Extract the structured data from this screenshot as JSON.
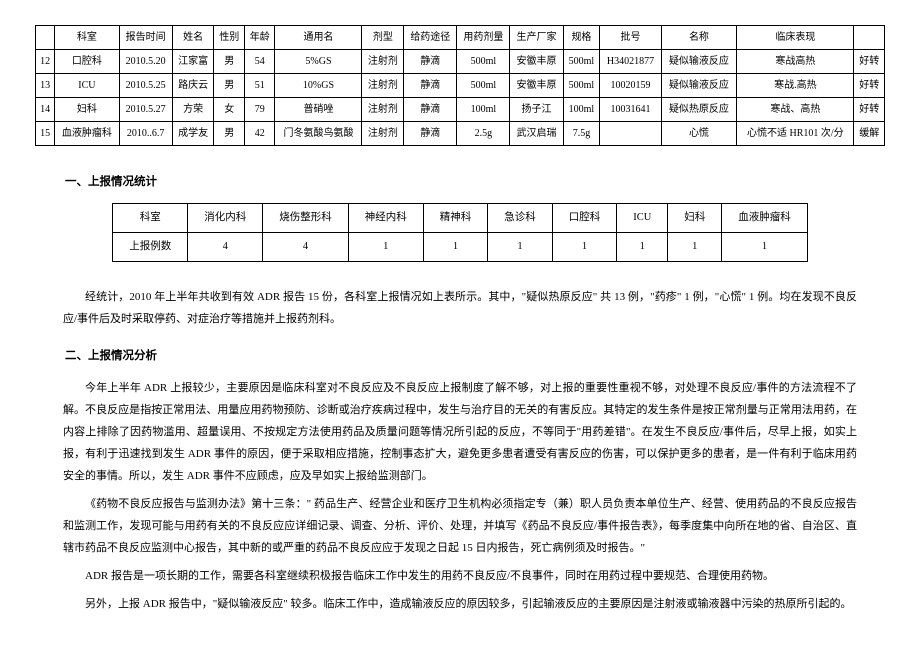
{
  "table1": {
    "headers": [
      "",
      "科室",
      "报告时间",
      "姓名",
      "性别",
      "年龄",
      "通用名",
      "剂型",
      "给药途径",
      "用药剂量",
      "生产厂家",
      "规格",
      "批号",
      "名称",
      "临床表现",
      ""
    ],
    "rows": [
      [
        "12",
        "口腔科",
        "2010.5.20",
        "江家富",
        "男",
        "54",
        "5%GS",
        "注射剂",
        "静滴",
        "500ml",
        "安徽丰原",
        "500ml",
        "H34021877",
        "疑似输液反应",
        "寒战高热",
        "好转"
      ],
      [
        "13",
        "ICU",
        "2010.5.25",
        "路庆云",
        "男",
        "51",
        "10%GS",
        "注射剂",
        "静滴",
        "500ml",
        "安徽丰原",
        "500ml",
        "10020159",
        "疑似输液反应",
        "寒战.高热",
        "好转"
      ],
      [
        "14",
        "妇科",
        "2010.5.27",
        "方荣",
        "女",
        "79",
        "普硝唑",
        "注射剂",
        "静滴",
        "100ml",
        "扬子江",
        "100ml",
        "10031641",
        "疑似热原反应",
        "寒战、高热",
        "好转"
      ],
      [
        "15",
        "血液肿瘤科",
        "2010..6.7",
        "成学友",
        "男",
        "42",
        "门冬氨酸鸟氨酸",
        "注射剂",
        "静滴",
        "2.5g",
        "武汉启瑞",
        "7.5g",
        "",
        "心慌",
        "心慌不适 HR101 次/分",
        "缓解"
      ]
    ]
  },
  "section1_title": "一、上报情况统计",
  "table2": {
    "headers": [
      "科室",
      "消化内科",
      "烧伤整形科",
      "神经内科",
      "精神科",
      "急诊科",
      "口腔科",
      "ICU",
      "妇科",
      "血液肿瘤科"
    ],
    "row_label": "上报例数",
    "values": [
      "4",
      "4",
      "1",
      "1",
      "1",
      "1",
      "1",
      "1",
      "1"
    ]
  },
  "para1": "经统计，2010 年上半年共收到有效 ADR 报告 15 份，各科室上报情况如上表所示。其中，\"疑似热原反应\" 共 13 例，\"药疹\" 1 例，\"心慌\" 1 例。均在发现不良反应/事件后及时采取停药、对症治疗等措施并上报药剂科。",
  "section2_title": "二、上报情况分析",
  "para2": "今年上半年 ADR 上报较少，主要原因是临床科室对不良反应及不良反应上报制度了解不够，对上报的重要性重视不够，对处理不良反应/事件的方法流程不了解。不良反应是指按正常用法、用量应用药物预防、诊断或治疗疾病过程中，发生与治疗目的无关的有害反应。其特定的发生条件是按正常剂量与正常用法用药，在内容上排除了因药物滥用、超量误用、不按规定方法使用药品及质量问题等情况所引起的反应，不等同于\"用药差错\"。在发生不良反应/事件后，尽早上报，如实上报，有利于迅速找到发生 ADR 事件的原因，便于采取相应措施，控制事态扩大，避免更多患者遭受有害反应的伤害，可以保护更多的患者，是一件有利于临床用药安全的事情。所以，发生 ADR 事件不应顾虑，应及早如实上报给监测部门。",
  "para3": "《药物不良反应报告与监测办法》第十三条：\" 药品生产、经营企业和医疗卫生机构必须指定专（兼）职人员负责本单位生产、经营、使用药品的不良反应报告和监测工作，发现可能与用药有关的不良反应应详细记录、调查、分析、评价、处理，并填写《药品不良反应/事件报告表》，每季度集中向所在地的省、自治区、直辖市药品不良反应监测中心报告，其中新的或严重的药品不良反应应于发现之日起 15 日内报告，死亡病例须及时报告。\"",
  "para4": "ADR 报告是一项长期的工作，需要各科室继续积极报告临床工作中发生的用药不良反应/不良事件，同时在用药过程中要规范、合理使用药物。",
  "para5": "另外，上报 ADR 报告中，\"疑似输液反应\" 较多。临床工作中，造成输液反应的原因较多，引起输液反应的主要原因是注射液或输液器中污染的热原所引起的。"
}
